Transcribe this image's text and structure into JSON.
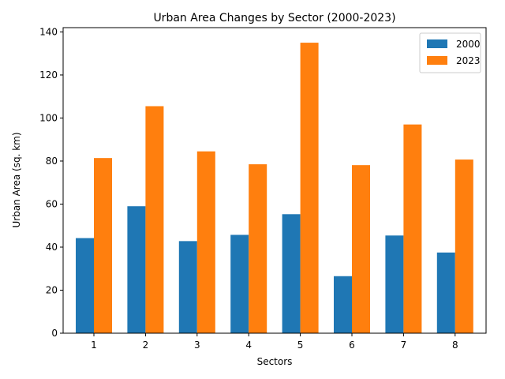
{
  "chart_data": {
    "type": "bar",
    "title": "Urban Area Changes by Sector (2000-2023)",
    "xlabel": "Sectors",
    "ylabel": "Urban Area (sq. km)",
    "categories": [
      "1",
      "2",
      "3",
      "4",
      "5",
      "6",
      "7",
      "8"
    ],
    "ylim": [
      0,
      142
    ],
    "yticks": [
      0,
      20,
      40,
      60,
      80,
      100,
      120,
      140
    ],
    "legend_position": "top-right",
    "grid": false,
    "series": [
      {
        "name": "2000",
        "color": "#1f77b4",
        "values": [
          44.2,
          59.0,
          42.8,
          45.7,
          55.3,
          26.5,
          45.4,
          37.5
        ]
      },
      {
        "name": "2023",
        "color": "#ff7f0e",
        "values": [
          81.4,
          105.5,
          84.5,
          78.5,
          135.0,
          78.1,
          97.0,
          80.7
        ]
      }
    ]
  }
}
